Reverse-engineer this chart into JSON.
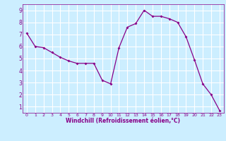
{
  "x": [
    0,
    1,
    2,
    3,
    4,
    5,
    6,
    7,
    8,
    9,
    10,
    11,
    12,
    13,
    14,
    15,
    16,
    17,
    18,
    19,
    20,
    21,
    22,
    23
  ],
  "y": [
    7.1,
    6.0,
    5.9,
    5.5,
    5.1,
    4.8,
    4.6,
    4.6,
    4.6,
    3.2,
    2.9,
    5.9,
    7.6,
    7.9,
    9.0,
    8.5,
    8.5,
    8.3,
    8.0,
    6.8,
    4.9,
    2.9,
    2.0,
    0.7
  ],
  "line_color": "#880088",
  "marker_color": "#880088",
  "bg_color": "#cceeff",
  "grid_color": "#aaddcc",
  "xlabel": "Windchill (Refroidissement éolien,°C)",
  "xlabel_color": "#880088",
  "tick_color": "#880088",
  "ylim": [
    0.5,
    9.5
  ],
  "xlim": [
    -0.5,
    23.5
  ],
  "yticks": [
    1,
    2,
    3,
    4,
    5,
    6,
    7,
    8,
    9
  ],
  "xticks": [
    0,
    1,
    2,
    3,
    4,
    5,
    6,
    7,
    8,
    9,
    10,
    11,
    12,
    13,
    14,
    15,
    16,
    17,
    18,
    19,
    20,
    21,
    22,
    23
  ]
}
